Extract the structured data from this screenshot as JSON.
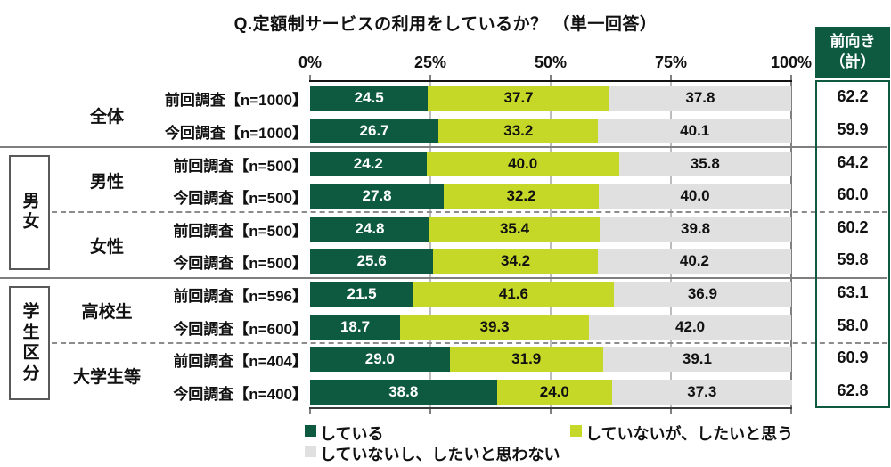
{
  "right_column": {
    "line1": "前向き",
    "line2": "（計）"
  },
  "legend": {
    "items": [
      {
        "label": "している",
        "color": "#0E5A40"
      },
      {
        "label": "していないが、したいと思う",
        "color": "#C5D827"
      },
      {
        "label": "していないし、したいと思わない",
        "color": "#E0E0E0"
      }
    ]
  },
  "colors": {
    "dark_green": "#0E5A40",
    "yellow_green": "#C5D827",
    "light_gray": "#E0E0E0"
  },
  "chart_data": {
    "type": "bar",
    "orientation": "horizontal",
    "stacked": true,
    "title": "Q.定額制サービスの利用をしているか？ （単一回答）",
    "x_range": [
      0,
      100
    ],
    "x_ticks": [
      "0%",
      "25%",
      "50%",
      "75%",
      "100%"
    ],
    "grid": true,
    "legend_position": "bottom",
    "series_names": [
      "している",
      "していないが、したいと思う",
      "していないし、したいと思わない"
    ],
    "total_column_header": "前向き（計）",
    "blocks": [
      {
        "block_label": "",
        "boxed": false,
        "groups": [
          {
            "label": "全体",
            "rows": [
              {
                "label": "前回調査【n=1000】",
                "values": [
                  24.5,
                  37.7,
                  37.8
                ],
                "total": 62.2
              },
              {
                "label": "今回調査【n=1000】",
                "values": [
                  26.7,
                  33.2,
                  40.1
                ],
                "total": 59.9
              }
            ]
          }
        ]
      },
      {
        "block_label": "男女",
        "boxed": true,
        "groups": [
          {
            "label": "男性",
            "rows": [
              {
                "label": "前回調査【n=500】",
                "values": [
                  24.2,
                  40.0,
                  35.8
                ],
                "total": 64.2
              },
              {
                "label": "今回調査【n=500】",
                "values": [
                  27.8,
                  32.2,
                  40.0
                ],
                "total": 60.0
              }
            ]
          },
          {
            "label": "女性",
            "rows": [
              {
                "label": "前回調査【n=500】",
                "values": [
                  24.8,
                  35.4,
                  39.8
                ],
                "total": 60.2
              },
              {
                "label": "今回調査【n=500】",
                "values": [
                  25.6,
                  34.2,
                  40.2
                ],
                "total": 59.8
              }
            ]
          }
        ]
      },
      {
        "block_label": "学生区分",
        "boxed": true,
        "groups": [
          {
            "label": "高校生",
            "rows": [
              {
                "label": "前回調査【n=596】",
                "values": [
                  21.5,
                  41.6,
                  36.9
                ],
                "total": 63.1
              },
              {
                "label": "今回調査【n=600】",
                "values": [
                  18.7,
                  39.3,
                  42.0
                ],
                "total": 58.0
              }
            ]
          },
          {
            "label": "大学生等",
            "rows": [
              {
                "label": "前回調査【n=404】",
                "values": [
                  29.0,
                  31.9,
                  39.1
                ],
                "total": 60.9
              },
              {
                "label": "今回調査【n=400】",
                "values": [
                  38.8,
                  24.0,
                  37.3
                ],
                "total": 62.8
              }
            ]
          }
        ]
      }
    ]
  }
}
